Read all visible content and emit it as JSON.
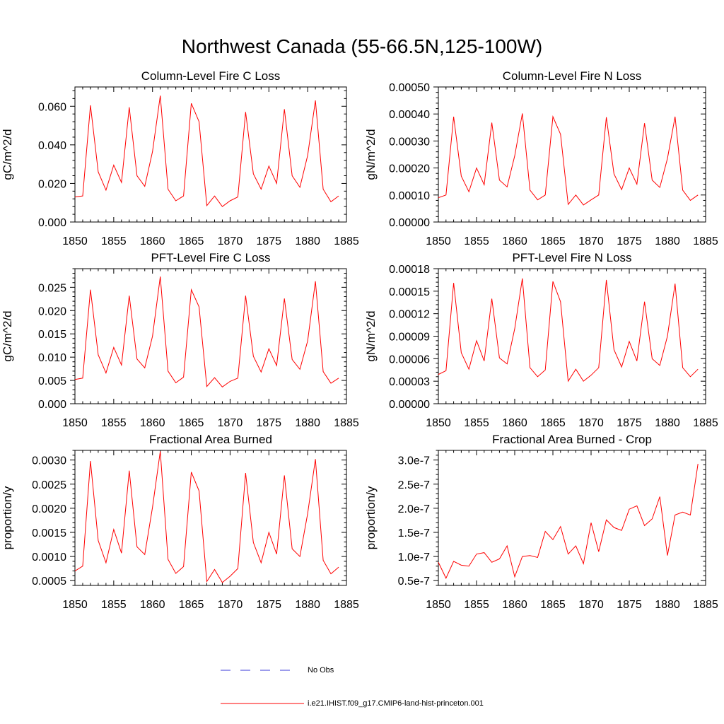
{
  "title": "Northwest Canada (55-66.5N,125-100W)",
  "legend": {
    "obs_label": "No Obs",
    "model_label": "i.e21.IHIST.f09_g17.CMIP6-land-hist-princeton.001",
    "obs_color": "#3a3ad9",
    "model_color": "#ff0000"
  },
  "chart_data": [
    {
      "type": "line",
      "title": "Column-Level Fire C Loss",
      "ylabel": "gC/m^2/d",
      "xlim": [
        1850,
        1885
      ],
      "ylim": [
        0,
        0.07
      ],
      "xticks": [
        1850,
        1855,
        1860,
        1865,
        1870,
        1875,
        1880,
        1885
      ],
      "yticks": [
        0.0,
        0.02,
        0.04,
        0.06
      ],
      "ytick_labels": [
        "0.000",
        "0.020",
        "0.040",
        "0.060"
      ],
      "x": [
        1850,
        1851,
        1852,
        1853,
        1854,
        1855,
        1856,
        1857,
        1858,
        1859,
        1860,
        1861,
        1862,
        1863,
        1864,
        1865,
        1866,
        1867,
        1868,
        1869,
        1870,
        1871,
        1872,
        1873,
        1874,
        1875,
        1876,
        1877,
        1878,
        1879,
        1880,
        1881,
        1882,
        1883,
        1884
      ],
      "series": [
        {
          "name": "i.e21.IHIST.f09_g17.CMIP6-land-hist-princeton.001",
          "color": "#ff0000",
          "values": [
            0.013,
            0.0135,
            0.0605,
            0.026,
            0.0165,
            0.0295,
            0.0205,
            0.0595,
            0.024,
            0.0185,
            0.0365,
            0.0655,
            0.017,
            0.011,
            0.0135,
            0.0615,
            0.052,
            0.0085,
            0.0135,
            0.008,
            0.011,
            0.013,
            0.057,
            0.025,
            0.017,
            0.029,
            0.02,
            0.0585,
            0.024,
            0.018,
            0.0345,
            0.063,
            0.017,
            0.0105,
            0.0135
          ]
        }
      ]
    },
    {
      "type": "line",
      "title": "Column-Level Fire N Loss",
      "ylabel": "gN/m^2/d",
      "xlim": [
        1850,
        1885
      ],
      "ylim": [
        0,
        0.0005
      ],
      "xticks": [
        1850,
        1855,
        1860,
        1865,
        1870,
        1875,
        1880,
        1885
      ],
      "yticks": [
        0.0,
        0.0001,
        0.0002,
        0.0003,
        0.0004,
        0.0005
      ],
      "ytick_labels": [
        "0.00000",
        "0.00010",
        "0.00020",
        "0.00030",
        "0.00040",
        "0.00050"
      ],
      "x": [
        1850,
        1851,
        1852,
        1853,
        1854,
        1855,
        1856,
        1857,
        1858,
        1859,
        1860,
        1861,
        1862,
        1863,
        1864,
        1865,
        1866,
        1867,
        1868,
        1869,
        1870,
        1871,
        1872,
        1873,
        1874,
        1875,
        1876,
        1877,
        1878,
        1879,
        1880,
        1881,
        1882,
        1883,
        1884
      ],
      "series": [
        {
          "name": "i.e21.IHIST.f09_g17.CMIP6-land-hist-princeton.001",
          "color": "#ff0000",
          "values": [
            9e-05,
            0.0001,
            0.00039,
            0.00017,
            0.000112,
            0.0002,
            0.000138,
            0.000368,
            0.000155,
            0.00013,
            0.000245,
            0.000402,
            0.000118,
            8.2e-05,
            0.0001,
            0.00039,
            0.000325,
            6.5e-05,
            0.0001,
            6.3e-05,
            8.2e-05,
            0.0001,
            0.000388,
            0.000178,
            0.00012,
            0.0002,
            0.00014,
            0.000366,
            0.000155,
            0.000128,
            0.000235,
            0.00039,
            0.000118,
            8e-05,
            0.0001
          ]
        }
      ]
    },
    {
      "type": "line",
      "title": "PFT-Level Fire C Loss",
      "ylabel": "gC/m^2/d",
      "xlim": [
        1850,
        1885
      ],
      "ylim": [
        0,
        0.029
      ],
      "xticks": [
        1850,
        1855,
        1860,
        1865,
        1870,
        1875,
        1880,
        1885
      ],
      "yticks": [
        0.0,
        0.005,
        0.01,
        0.015,
        0.02,
        0.025
      ],
      "ytick_labels": [
        "0.000",
        "0.005",
        "0.010",
        "0.015",
        "0.020",
        "0.025"
      ],
      "x": [
        1850,
        1851,
        1852,
        1853,
        1854,
        1855,
        1856,
        1857,
        1858,
        1859,
        1860,
        1861,
        1862,
        1863,
        1864,
        1865,
        1866,
        1867,
        1868,
        1869,
        1870,
        1871,
        1872,
        1873,
        1874,
        1875,
        1876,
        1877,
        1878,
        1879,
        1880,
        1881,
        1882,
        1883,
        1884
      ],
      "series": [
        {
          "name": "i.e21.IHIST.f09_g17.CMIP6-land-hist-princeton.001",
          "color": "#ff0000",
          "values": [
            0.0052,
            0.0055,
            0.0245,
            0.0105,
            0.0066,
            0.0121,
            0.0083,
            0.0232,
            0.0096,
            0.0077,
            0.0145,
            0.0273,
            0.007,
            0.0045,
            0.0057,
            0.0245,
            0.0208,
            0.0037,
            0.0056,
            0.0036,
            0.0048,
            0.0055,
            0.0232,
            0.0102,
            0.0068,
            0.0118,
            0.0082,
            0.0226,
            0.0095,
            0.0074,
            0.0135,
            0.0263,
            0.0069,
            0.0044,
            0.0055
          ]
        }
      ]
    },
    {
      "type": "line",
      "title": "PFT-Level Fire N Loss",
      "ylabel": "gN/m^2/d",
      "xlim": [
        1850,
        1885
      ],
      "ylim": [
        0,
        0.00018
      ],
      "xticks": [
        1850,
        1855,
        1860,
        1865,
        1870,
        1875,
        1880,
        1885
      ],
      "yticks": [
        0.0,
        3e-05,
        6e-05,
        9e-05,
        0.00012,
        0.00015,
        0.00018
      ],
      "ytick_labels": [
        "0.00000",
        "0.00003",
        "0.00006",
        "0.00009",
        "0.00012",
        "0.00015",
        "0.00018"
      ],
      "x": [
        1850,
        1851,
        1852,
        1853,
        1854,
        1855,
        1856,
        1857,
        1858,
        1859,
        1860,
        1861,
        1862,
        1863,
        1864,
        1865,
        1866,
        1867,
        1868,
        1869,
        1870,
        1871,
        1872,
        1873,
        1874,
        1875,
        1876,
        1877,
        1878,
        1879,
        1880,
        1881,
        1882,
        1883,
        1884
      ],
      "series": [
        {
          "name": "i.e21.IHIST.f09_g17.CMIP6-land-hist-princeton.001",
          "color": "#ff0000",
          "values": [
            3.9e-05,
            4.4e-05,
            0.000161,
            6.8e-05,
            4.6e-05,
            8.4e-05,
            5.7e-05,
            0.00014,
            6.1e-05,
            5.3e-05,
            0.0001,
            0.000167,
            4.8e-05,
            3.6e-05,
            4.5e-05,
            0.000163,
            0.000136,
            3e-05,
            4.6e-05,
            3e-05,
            3.8e-05,
            4.8e-05,
            0.000165,
            7.2e-05,
            4.9e-05,
            8.3e-05,
            5.7e-05,
            0.000136,
            6e-05,
            5.1e-05,
            9e-05,
            0.00016,
            4.8e-05,
            3.6e-05,
            4.6e-05
          ]
        }
      ]
    },
    {
      "type": "line",
      "title": "Fractional Area Burned",
      "ylabel": "proportion/y",
      "xlim": [
        1850,
        1885
      ],
      "ylim": [
        0.0004,
        0.0032
      ],
      "xticks": [
        1850,
        1855,
        1860,
        1865,
        1870,
        1875,
        1880,
        1885
      ],
      "yticks": [
        0.0005,
        0.001,
        0.0015,
        0.002,
        0.0025,
        0.003
      ],
      "ytick_labels": [
        "0.0005",
        "0.0010",
        "0.0015",
        "0.0020",
        "0.0025",
        "0.0030"
      ],
      "x": [
        1850,
        1851,
        1852,
        1853,
        1854,
        1855,
        1856,
        1857,
        1858,
        1859,
        1860,
        1861,
        1862,
        1863,
        1864,
        1865,
        1866,
        1867,
        1868,
        1869,
        1870,
        1871,
        1872,
        1873,
        1874,
        1875,
        1876,
        1877,
        1878,
        1879,
        1880,
        1881,
        1882,
        1883,
        1884
      ],
      "series": [
        {
          "name": "i.e21.IHIST.f09_g17.CMIP6-land-hist-princeton.001",
          "color": "#ff0000",
          "values": [
            0.0007,
            0.0008,
            0.00298,
            0.00133,
            0.00087,
            0.00156,
            0.00107,
            0.00278,
            0.0012,
            0.00104,
            0.00202,
            0.00318,
            0.00094,
            0.00065,
            0.00079,
            0.00275,
            0.00236,
            0.00048,
            0.00073,
            0.00046,
            0.00059,
            0.00075,
            0.00273,
            0.00129,
            0.00087,
            0.0015,
            0.00105,
            0.00268,
            0.00116,
            0.001,
            0.00189,
            0.00302,
            0.00092,
            0.00064,
            0.00078
          ]
        }
      ]
    },
    {
      "type": "line",
      "title": "Fractional Area Burned - Crop",
      "ylabel": "proportion/y",
      "xlim": [
        1850,
        1885
      ],
      "ylim": [
        4e-08,
        3.2e-07
      ],
      "xticks": [
        1850,
        1855,
        1860,
        1865,
        1870,
        1875,
        1880,
        1885
      ],
      "yticks": [
        5e-08,
        1e-07,
        1.5e-07,
        2e-07,
        2.5e-07,
        3e-07
      ],
      "ytick_labels": [
        "0.5e-7",
        "1.0e-7",
        "1.5e-7",
        "2.0e-7",
        "2.5e-7",
        "3.0e-7"
      ],
      "x": [
        1850,
        1851,
        1852,
        1853,
        1854,
        1855,
        1856,
        1857,
        1858,
        1859,
        1860,
        1861,
        1862,
        1863,
        1864,
        1865,
        1866,
        1867,
        1868,
        1869,
        1870,
        1871,
        1872,
        1873,
        1874,
        1875,
        1876,
        1877,
        1878,
        1879,
        1880,
        1881,
        1882,
        1883,
        1884
      ],
      "series": [
        {
          "name": "i.e21.IHIST.f09_g17.CMIP6-land-hist-princeton.001",
          "color": "#ff0000",
          "values": [
            8.8e-08,
            5.5e-08,
            9e-08,
            8.2e-08,
            8e-08,
            1.05e-07,
            1.08e-07,
            8.8e-08,
            9.5e-08,
            1.22e-07,
            5.8e-08,
            1e-07,
            1.02e-07,
            9.8e-08,
            1.52e-07,
            1.35e-07,
            1.62e-07,
            1.05e-07,
            1.22e-07,
            8.5e-08,
            1.7e-07,
            1.1e-07,
            1.76e-07,
            1.6e-07,
            1.54e-07,
            1.98e-07,
            2.05e-07,
            1.64e-07,
            1.78e-07,
            2.24e-07,
            1.02e-07,
            1.86e-07,
            1.92e-07,
            1.86e-07,
            2.92e-07
          ]
        }
      ]
    }
  ]
}
